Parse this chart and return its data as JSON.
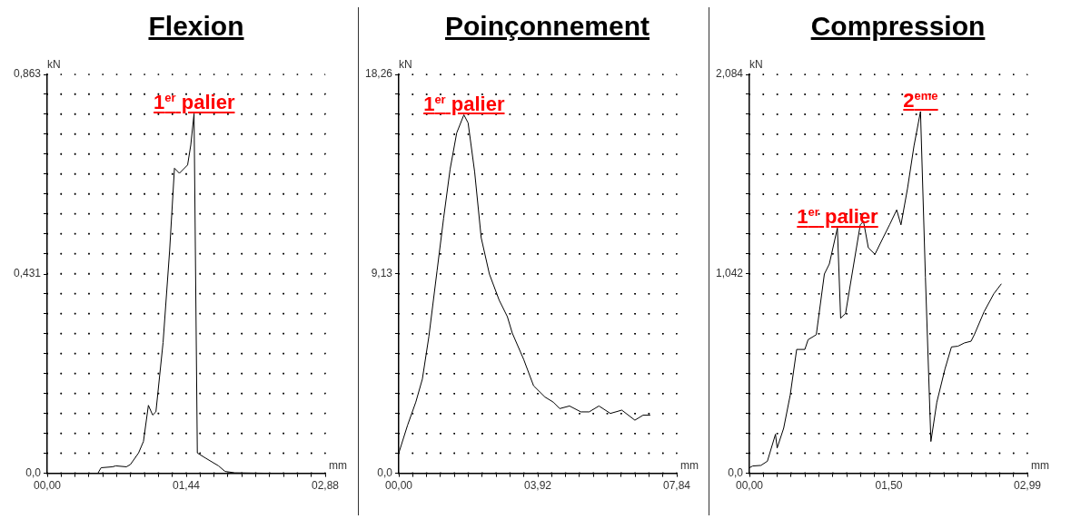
{
  "chart_data": [
    {
      "type": "line",
      "title": "Flexion",
      "xlabel": "mm",
      "ylabel": "kN",
      "grid": true,
      "legend": false,
      "marker": "none",
      "line_style": "solid",
      "xlim": [
        0,
        2.88
      ],
      "ylim": [
        0,
        0.863
      ],
      "xticks": [
        {
          "value": 0,
          "label": "00,00"
        },
        {
          "value": 0.144,
          "label": null
        },
        {
          "value": 0.288,
          "label": null
        },
        {
          "value": 0.432,
          "label": null
        },
        {
          "value": 0.576,
          "label": null
        },
        {
          "value": 0.72,
          "label": null
        },
        {
          "value": 0.864,
          "label": null
        },
        {
          "value": 1.008,
          "label": null
        },
        {
          "value": 1.152,
          "label": null
        },
        {
          "value": 1.296,
          "label": null
        },
        {
          "value": 1.44,
          "label": "01,44"
        },
        {
          "value": 1.584,
          "label": null
        },
        {
          "value": 1.728,
          "label": null
        },
        {
          "value": 1.872,
          "label": null
        },
        {
          "value": 2.016,
          "label": null
        },
        {
          "value": 2.16,
          "label": null
        },
        {
          "value": 2.304,
          "label": null
        },
        {
          "value": 2.448,
          "label": null
        },
        {
          "value": 2.592,
          "label": null
        },
        {
          "value": 2.736,
          "label": null
        },
        {
          "value": 2.88,
          "label": "02,88"
        }
      ],
      "yticks": [
        {
          "value": 0,
          "label": "0,0"
        },
        {
          "value": 0.0432,
          "label": null
        },
        {
          "value": 0.0863,
          "label": null
        },
        {
          "value": 0.1295,
          "label": null
        },
        {
          "value": 0.1726,
          "label": null
        },
        {
          "value": 0.2158,
          "label": null
        },
        {
          "value": 0.2589,
          "label": null
        },
        {
          "value": 0.3021,
          "label": null
        },
        {
          "value": 0.3452,
          "label": null
        },
        {
          "value": 0.3884,
          "label": null
        },
        {
          "value": 0.431,
          "label": "0,431"
        },
        {
          "value": 0.4747,
          "label": null
        },
        {
          "value": 0.5178,
          "label": null
        },
        {
          "value": 0.561,
          "label": null
        },
        {
          "value": 0.6041,
          "label": null
        },
        {
          "value": 0.6473,
          "label": null
        },
        {
          "value": 0.6904,
          "label": null
        },
        {
          "value": 0.7336,
          "label": null
        },
        {
          "value": 0.7767,
          "label": null
        },
        {
          "value": 0.8199,
          "label": null
        },
        {
          "value": 0.863,
          "label": "0,863"
        }
      ],
      "annotations": [
        {
          "text": "1$^{er}$ palier",
          "x": 1.521,
          "y": 0.778
        }
      ],
      "series": [
        {
          "color": "#000000",
          "x": [
            0.524,
            0.558,
            0.676,
            0.71,
            0.82,
            0.862,
            0.946,
            0.997,
            1.048,
            1.092,
            1.126,
            1.2,
            1.268,
            1.318,
            1.369,
            1.454,
            1.487,
            1.521,
            1.555,
            1.639,
            1.775,
            1.842,
            1.944,
            2.315
          ],
          "values": [
            0,
            0.012,
            0.014,
            0.016,
            0.014,
            0.019,
            0.044,
            0.069,
            0.147,
            0.126,
            0.133,
            0.283,
            0.482,
            0.66,
            0.649,
            0.667,
            0.71,
            0.778,
            0.044,
            0.033,
            0.016,
            0.004,
            0.001,
            0
          ]
        }
      ]
    },
    {
      "type": "line",
      "title": "Poinçonnement",
      "xlabel": "mm",
      "ylabel": "kN",
      "grid": true,
      "legend": false,
      "marker": "none",
      "line_style": "solid",
      "xlim": [
        0,
        7.84
      ],
      "ylim": [
        0,
        18.26
      ],
      "xticks": [
        {
          "value": 0,
          "label": "00,00"
        },
        {
          "value": 0.392,
          "label": null
        },
        {
          "value": 0.784,
          "label": null
        },
        {
          "value": 1.176,
          "label": null
        },
        {
          "value": 1.568,
          "label": null
        },
        {
          "value": 1.96,
          "label": null
        },
        {
          "value": 2.352,
          "label": null
        },
        {
          "value": 2.744,
          "label": null
        },
        {
          "value": 3.136,
          "label": null
        },
        {
          "value": 3.528,
          "label": null
        },
        {
          "value": 3.92,
          "label": "03,92"
        },
        {
          "value": 4.312,
          "label": null
        },
        {
          "value": 4.704,
          "label": null
        },
        {
          "value": 5.096,
          "label": null
        },
        {
          "value": 5.488,
          "label": null
        },
        {
          "value": 5.88,
          "label": null
        },
        {
          "value": 6.272,
          "label": null
        },
        {
          "value": 6.664,
          "label": null
        },
        {
          "value": 7.056,
          "label": null
        },
        {
          "value": 7.448,
          "label": null
        },
        {
          "value": 7.84,
          "label": "07,84"
        }
      ],
      "yticks": [
        {
          "value": 0,
          "label": "0,0"
        },
        {
          "value": 0.913,
          "label": null
        },
        {
          "value": 1.826,
          "label": null
        },
        {
          "value": 2.739,
          "label": null
        },
        {
          "value": 3.652,
          "label": null
        },
        {
          "value": 4.565,
          "label": null
        },
        {
          "value": 5.478,
          "label": null
        },
        {
          "value": 6.391,
          "label": null
        },
        {
          "value": 7.304,
          "label": null
        },
        {
          "value": 8.217,
          "label": null
        },
        {
          "value": 9.13,
          "label": "9,13"
        },
        {
          "value": 10.043,
          "label": null
        },
        {
          "value": 10.956,
          "label": null
        },
        {
          "value": 11.869,
          "label": null
        },
        {
          "value": 12.782,
          "label": null
        },
        {
          "value": 13.695,
          "label": null
        },
        {
          "value": 14.608,
          "label": null
        },
        {
          "value": 15.521,
          "label": null
        },
        {
          "value": 16.434,
          "label": null
        },
        {
          "value": 17.347,
          "label": null
        },
        {
          "value": 18.26,
          "label": "18,26"
        }
      ],
      "annotations": [
        {
          "text": "1$^{er}$ palier",
          "x": 1.835,
          "y": 16.41
        }
      ],
      "series": [
        {
          "color": "#000000",
          "x": [
            0,
            0.249,
            0.48,
            0.664,
            0.849,
            1.079,
            1.264,
            1.448,
            1.633,
            1.835,
            1.955,
            2.14,
            2.324,
            2.555,
            2.832,
            3.062,
            3.2,
            3.523,
            3.8,
            4.123,
            4.354,
            4.538,
            4.815,
            5.137,
            5.368,
            5.645,
            5.968,
            6.29,
            6.659,
            6.89,
            7.093
          ],
          "values": [
            0.93,
            2.21,
            3.26,
            4.31,
            6.27,
            9.27,
            11.68,
            13.93,
            15.58,
            16.41,
            16.04,
            13.78,
            10.78,
            9.12,
            7.92,
            7.17,
            6.42,
            5.21,
            4.01,
            3.49,
            3.26,
            2.96,
            3.08,
            2.81,
            2.81,
            3.08,
            2.74,
            2.89,
            2.43,
            2.66,
            2.66
          ]
        }
      ]
    },
    {
      "type": "line",
      "title": "Compression",
      "xlabel": "mm",
      "ylabel": "kN",
      "grid": true,
      "legend": false,
      "marker": "none",
      "line_style": "solid",
      "xlim": [
        0,
        2.99
      ],
      "ylim": [
        0,
        2.084
      ],
      "xticks": [
        {
          "value": 0,
          "label": "00,00"
        },
        {
          "value": 0.1495,
          "label": null
        },
        {
          "value": 0.299,
          "label": null
        },
        {
          "value": 0.4485,
          "label": null
        },
        {
          "value": 0.598,
          "label": null
        },
        {
          "value": 0.7475,
          "label": null
        },
        {
          "value": 0.897,
          "label": null
        },
        {
          "value": 1.0465,
          "label": null
        },
        {
          "value": 1.196,
          "label": null
        },
        {
          "value": 1.3455,
          "label": null
        },
        {
          "value": 1.5,
          "label": "01,50"
        },
        {
          "value": 1.6445,
          "label": null
        },
        {
          "value": 1.794,
          "label": null
        },
        {
          "value": 1.9435,
          "label": null
        },
        {
          "value": 2.093,
          "label": null
        },
        {
          "value": 2.2425,
          "label": null
        },
        {
          "value": 2.392,
          "label": null
        },
        {
          "value": 2.5415,
          "label": null
        },
        {
          "value": 2.691,
          "label": null
        },
        {
          "value": 2.8405,
          "label": null
        },
        {
          "value": 2.99,
          "label": "02,99"
        }
      ],
      "yticks": [
        {
          "value": 0,
          "label": "0,0"
        },
        {
          "value": 0.1042,
          "label": null
        },
        {
          "value": 0.2084,
          "label": null
        },
        {
          "value": 0.3126,
          "label": null
        },
        {
          "value": 0.4168,
          "label": null
        },
        {
          "value": 0.521,
          "label": null
        },
        {
          "value": 0.6252,
          "label": null
        },
        {
          "value": 0.7294,
          "label": null
        },
        {
          "value": 0.8336,
          "label": null
        },
        {
          "value": 0.9378,
          "label": null
        },
        {
          "value": 1.042,
          "label": "1,042"
        },
        {
          "value": 1.1462,
          "label": null
        },
        {
          "value": 1.2504,
          "label": null
        },
        {
          "value": 1.3546,
          "label": null
        },
        {
          "value": 1.4588,
          "label": null
        },
        {
          "value": 1.563,
          "label": null
        },
        {
          "value": 1.6672,
          "label": null
        },
        {
          "value": 1.7714,
          "label": null
        },
        {
          "value": 1.8756,
          "label": null
        },
        {
          "value": 1.9798,
          "label": null
        },
        {
          "value": 2.084,
          "label": "2,084"
        }
      ],
      "annotations": [
        {
          "text": "1$^{er}$ palier",
          "x": 0.946,
          "y": 1.281
        },
        {
          "text": "2$^{eme}$",
          "x": 1.84,
          "y": 1.89
        }
      ],
      "series": [
        {
          "color": "#000000",
          "x": [
            0,
            0.035,
            0.123,
            0.193,
            0.28,
            0.298,
            0.368,
            0.438,
            0.508,
            0.596,
            0.631,
            0.719,
            0.806,
            0.859,
            0.946,
            0.981,
            1.034,
            1.104,
            1.192,
            1.227,
            1.279,
            1.35,
            1.437,
            1.507,
            1.584,
            1.63,
            1.7,
            1.77,
            1.84,
            1.893,
            1.952,
            2.016,
            2.103,
            2.173,
            2.243,
            2.313,
            2.384,
            2.419,
            2.524,
            2.629,
            2.71
          ],
          "values": [
            0.029,
            0.038,
            0.041,
            0.063,
            0.204,
            0.132,
            0.235,
            0.407,
            0.647,
            0.647,
            0.698,
            0.724,
            1.041,
            1.093,
            1.281,
            0.81,
            0.835,
            1.041,
            1.298,
            1.316,
            1.178,
            1.144,
            1.23,
            1.298,
            1.376,
            1.298,
            1.487,
            1.71,
            1.89,
            1.024,
            0.166,
            0.372,
            0.544,
            0.66,
            0.664,
            0.681,
            0.69,
            0.724,
            0.844,
            0.938,
            0.99
          ]
        }
      ]
    }
  ]
}
